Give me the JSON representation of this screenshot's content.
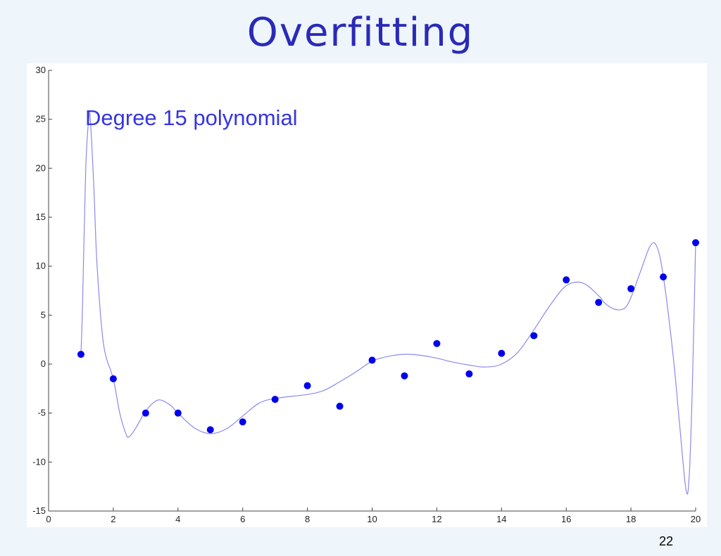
{
  "slide": {
    "title": "Overfitting",
    "page_number": "22"
  },
  "chart_data": {
    "type": "scatter",
    "title": "",
    "xlabel": "",
    "ylabel": "",
    "xlim": [
      0,
      20
    ],
    "ylim": [
      -15,
      30
    ],
    "x_ticks": [
      0,
      2,
      4,
      6,
      8,
      10,
      12,
      14,
      16,
      18,
      20
    ],
    "y_ticks": [
      -15,
      -10,
      -5,
      0,
      5,
      10,
      15,
      20,
      25,
      30
    ],
    "grid": false,
    "annotation": "Degree 15 polynomial",
    "colors": {
      "points": "#0000ee",
      "curve": "#8a8aee",
      "title": "#2a2ab8",
      "annotation": "#3535e0"
    },
    "series": [
      {
        "kind": "points",
        "x": [
          1,
          2,
          3,
          4,
          5,
          6,
          7,
          8,
          9,
          10,
          11,
          12,
          13,
          14,
          15,
          16,
          17,
          18,
          19,
          20
        ],
        "y": [
          1.0,
          -1.5,
          -5.0,
          -5.0,
          -6.7,
          -5.9,
          -3.6,
          -2.2,
          -4.3,
          0.4,
          -1.2,
          2.1,
          -1.0,
          1.1,
          2.9,
          8.6,
          6.3,
          7.7,
          8.9,
          12.4
        ]
      },
      {
        "kind": "curve",
        "x": [
          1,
          1.05,
          1.15,
          1.25,
          1.3,
          1.4,
          1.5,
          1.7,
          2,
          2.2,
          2.4,
          2.5,
          2.7,
          3,
          3.3,
          3.5,
          3.8,
          4,
          4.5,
          5,
          5.5,
          6,
          6.5,
          7,
          8,
          8.5,
          9,
          9.5,
          10,
          10.5,
          11,
          11.5,
          12,
          12.5,
          13,
          13.5,
          14,
          14.5,
          15,
          15.5,
          16,
          16.5,
          17,
          17.2,
          17.5,
          17.8,
          18,
          18.3,
          18.6,
          18.8,
          19,
          19.3,
          19.5,
          19.7,
          19.8,
          19.9,
          20
        ],
        "y": [
          1.0,
          6,
          20,
          25.3,
          24.5,
          18,
          10,
          2,
          -1.5,
          -5,
          -7.2,
          -7.4,
          -6.5,
          -4.8,
          -3.8,
          -3.7,
          -4.3,
          -5.0,
          -6.5,
          -7.1,
          -6.6,
          -5.3,
          -4.0,
          -3.5,
          -3.1,
          -2.7,
          -1.8,
          -0.8,
          0.3,
          0.8,
          1.0,
          0.9,
          0.6,
          0.2,
          -0.1,
          -0.3,
          0.0,
          1.2,
          3.5,
          6.0,
          8.0,
          8.3,
          7.0,
          6.2,
          5.6,
          5.7,
          6.8,
          9.5,
          12.1,
          12.0,
          9.0,
          1.0,
          -6.0,
          -12.8,
          -11.5,
          -2.0,
          12.4
        ]
      }
    ]
  }
}
